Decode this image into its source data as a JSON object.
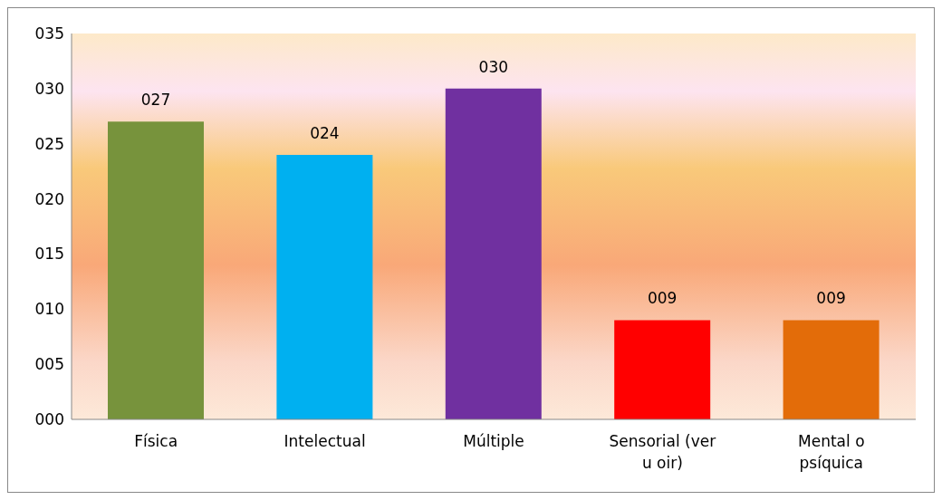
{
  "chart_data": {
    "type": "bar",
    "categories": [
      "Física",
      "Intelectual",
      "Múltiple",
      "Sensorial (ver u oir)",
      "Mental o psíquica"
    ],
    "values": [
      27,
      24,
      30,
      9,
      9
    ],
    "colors": [
      "#77933c",
      "#00b0f0",
      "#7030a0",
      "#ff0000",
      "#e36c09"
    ],
    "value_labels": [
      "027",
      "024",
      "030",
      "009",
      "009"
    ],
    "ylim": [
      0,
      35
    ],
    "yticks": [
      {
        "value": 0,
        "label": "000"
      },
      {
        "value": 5,
        "label": "005"
      },
      {
        "value": 10,
        "label": "010"
      },
      {
        "value": 15,
        "label": "015"
      },
      {
        "value": 20,
        "label": "020"
      },
      {
        "value": 25,
        "label": "025"
      },
      {
        "value": 30,
        "label": "030"
      },
      {
        "value": 35,
        "label": "035"
      }
    ],
    "grid": false
  }
}
